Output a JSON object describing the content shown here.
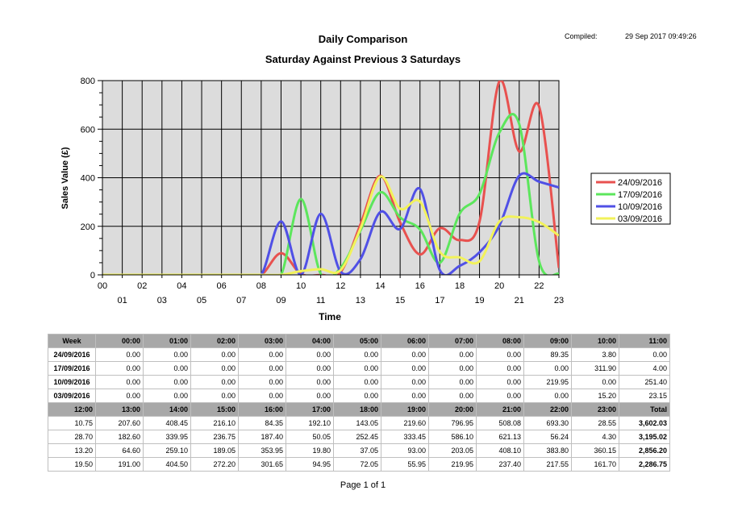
{
  "report": {
    "title": "Daily Comparison",
    "subtitle": "Saturday Against Previous 3 Saturdays",
    "compiled_label": "Compiled:",
    "compiled_value": "29 Sep 2017 09:49:26",
    "footer": "Page 1 of 1"
  },
  "chart_data": {
    "type": "line",
    "xlabel": "Time",
    "ylabel": "Sales Value (£)",
    "x": [
      "00",
      "01",
      "02",
      "03",
      "04",
      "05",
      "06",
      "07",
      "08",
      "09",
      "10",
      "11",
      "12",
      "13",
      "14",
      "15",
      "16",
      "17",
      "18",
      "19",
      "20",
      "21",
      "22",
      "23"
    ],
    "ylim": [
      0,
      800
    ],
    "yticks": [
      0,
      200,
      400,
      600,
      800
    ],
    "grid": true,
    "legend_position": "right",
    "series": [
      {
        "name": "24/09/2016",
        "color": "#e8514f",
        "values": [
          0,
          0,
          0,
          0,
          0,
          0,
          0,
          0,
          0,
          89.35,
          3.8,
          0.0,
          10.75,
          207.6,
          408.45,
          216.1,
          84.35,
          192.1,
          143.05,
          219.6,
          796.95,
          508.08,
          693.3,
          28.55
        ]
      },
      {
        "name": "17/09/2016",
        "color": "#5ce65c",
        "values": [
          0,
          0,
          0,
          0,
          0,
          0,
          0,
          0,
          0,
          0,
          311.9,
          4.0,
          28.7,
          182.6,
          339.95,
          236.75,
          187.4,
          50.05,
          252.45,
          333.45,
          586.1,
          621.13,
          56.24,
          4.3
        ]
      },
      {
        "name": "10/09/2016",
        "color": "#5050e6",
        "values": [
          0,
          0,
          0,
          0,
          0,
          0,
          0,
          0,
          0,
          219.95,
          0,
          251.4,
          13.2,
          64.6,
          259.1,
          189.05,
          353.95,
          19.8,
          37.05,
          93.0,
          203.05,
          408.1,
          383.8,
          360.15
        ]
      },
      {
        "name": "03/09/2016",
        "color": "#f2f25a",
        "values": [
          0,
          0,
          0,
          0,
          0,
          0,
          0,
          0,
          0,
          0,
          15.2,
          23.15,
          19.5,
          191.0,
          404.5,
          272.2,
          301.65,
          94.95,
          72.05,
          55.95,
          219.95,
          237.4,
          217.55,
          161.7
        ]
      }
    ]
  },
  "table": {
    "top_header": [
      "Week",
      "00:00",
      "01:00",
      "02:00",
      "03:00",
      "04:00",
      "05:00",
      "06:00",
      "07:00",
      "08:00",
      "09:00",
      "10:00",
      "11:00"
    ],
    "top_rows": [
      [
        "24/09/2016",
        "0.00",
        "0.00",
        "0.00",
        "0.00",
        "0.00",
        "0.00",
        "0.00",
        "0.00",
        "0.00",
        "89.35",
        "3.80",
        "0.00"
      ],
      [
        "17/09/2016",
        "0.00",
        "0.00",
        "0.00",
        "0.00",
        "0.00",
        "0.00",
        "0.00",
        "0.00",
        "0.00",
        "0.00",
        "311.90",
        "4.00"
      ],
      [
        "10/09/2016",
        "0.00",
        "0.00",
        "0.00",
        "0.00",
        "0.00",
        "0.00",
        "0.00",
        "0.00",
        "0.00",
        "219.95",
        "0.00",
        "251.40"
      ],
      [
        "03/09/2016",
        "0.00",
        "0.00",
        "0.00",
        "0.00",
        "0.00",
        "0.00",
        "0.00",
        "0.00",
        "0.00",
        "0.00",
        "15.20",
        "23.15"
      ]
    ],
    "bottom_header": [
      "12:00",
      "13:00",
      "14:00",
      "15:00",
      "16:00",
      "17:00",
      "18:00",
      "19:00",
      "20:00",
      "21:00",
      "22:00",
      "23:00",
      "Total"
    ],
    "bottom_rows": [
      [
        "10.75",
        "207.60",
        "408.45",
        "216.10",
        "84.35",
        "192.10",
        "143.05",
        "219.60",
        "796.95",
        "508.08",
        "693.30",
        "28.55",
        "3,602.03"
      ],
      [
        "28.70",
        "182.60",
        "339.95",
        "236.75",
        "187.40",
        "50.05",
        "252.45",
        "333.45",
        "586.10",
        "621.13",
        "56.24",
        "4.30",
        "3,195.02"
      ],
      [
        "13.20",
        "64.60",
        "259.10",
        "189.05",
        "353.95",
        "19.80",
        "37.05",
        "93.00",
        "203.05",
        "408.10",
        "383.80",
        "360.15",
        "2,856.20"
      ],
      [
        "19.50",
        "191.00",
        "404.50",
        "272.20",
        "301.65",
        "94.95",
        "72.05",
        "55.95",
        "219.95",
        "237.40",
        "217.55",
        "161.70",
        "2,286.75"
      ]
    ]
  }
}
